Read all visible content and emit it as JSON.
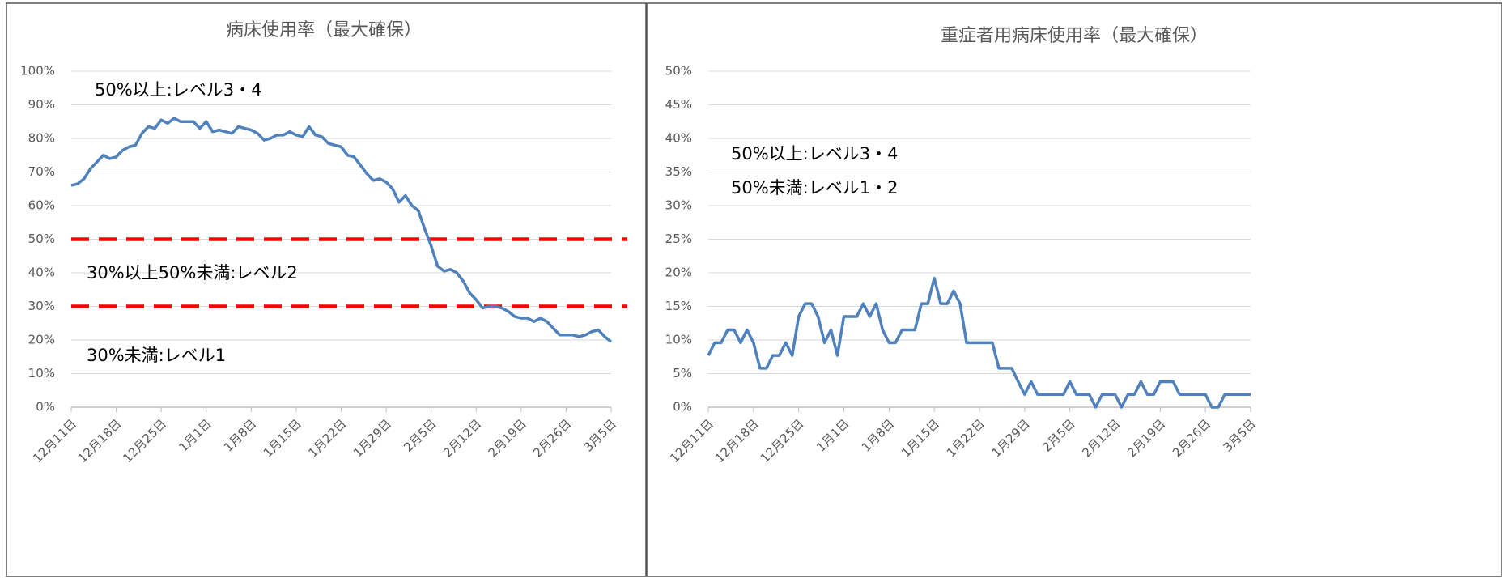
{
  "chart_data": [
    {
      "type": "line",
      "title": "病床使用率（最大確保）",
      "categories": [
        "12月11日",
        null,
        null,
        null,
        null,
        null,
        null,
        "12月18日",
        null,
        null,
        null,
        null,
        null,
        null,
        "12月25日",
        null,
        null,
        null,
        null,
        null,
        null,
        "1月1日",
        null,
        null,
        null,
        null,
        null,
        null,
        "1月8日",
        null,
        null,
        null,
        null,
        null,
        null,
        "1月15日",
        null,
        null,
        null,
        null,
        null,
        null,
        "1月22日",
        null,
        null,
        null,
        null,
        null,
        null,
        "1月29日",
        null,
        null,
        null,
        null,
        null,
        null,
        "2月5日",
        null,
        null,
        null,
        null,
        null,
        null,
        "2月12日",
        null,
        null,
        null,
        null,
        null,
        null,
        "2月19日",
        null,
        null,
        null,
        null,
        null,
        null,
        "2月26日",
        null,
        null,
        null,
        null,
        null,
        null,
        "3月5日"
      ],
      "series": [
        {
          "color": "#4f81bd",
          "values": [
            66,
            66.5,
            68,
            71,
            73,
            75,
            74,
            74.5,
            76.5,
            77.5,
            78,
            81.5,
            83.5,
            83,
            85.5,
            84.5,
            86,
            85,
            85,
            85,
            83,
            85,
            82,
            82.5,
            82,
            81.5,
            83.5,
            83,
            82.5,
            81.5,
            79.5,
            80,
            81,
            81,
            82,
            81,
            80.5,
            83.5,
            81,
            80.5,
            78.5,
            78,
            77.5,
            75,
            74.5,
            72,
            69.5,
            67.5,
            68,
            67,
            65,
            61,
            63,
            60,
            58.5,
            53,
            48,
            42,
            40.5,
            41,
            40,
            37.5,
            34,
            32,
            29.5,
            30,
            30,
            29.5,
            28.5,
            27,
            26.5,
            26.5,
            25.5,
            26.5,
            25.5,
            23.5,
            21.5,
            21.5,
            21.5,
            21,
            21.5,
            22.5,
            23,
            21,
            19.5
          ]
        }
      ],
      "ylim": [
        0,
        100
      ],
      "yticks": [
        {
          "value": 0,
          "label": "0%"
        },
        {
          "value": 10,
          "label": "10%"
        },
        {
          "value": 20,
          "label": "20%"
        },
        {
          "value": 30,
          "label": "30%"
        },
        {
          "value": 40,
          "label": "40%"
        },
        {
          "value": 50,
          "label": "50%"
        },
        {
          "value": 60,
          "label": "60%"
        },
        {
          "value": 70,
          "label": "70%"
        },
        {
          "value": 80,
          "label": "80%"
        },
        {
          "value": 90,
          "label": "90%"
        },
        {
          "value": 100,
          "label": "100%"
        }
      ],
      "grid": true,
      "reference_lines": [
        {
          "value": 50,
          "color": "#ff0000"
        },
        {
          "value": 30,
          "color": "#ff0000"
        }
      ],
      "annotations": [
        "50%以上:レベル3・4",
        "30%以上50%未満:レベル2",
        "30%未満:レベル1"
      ]
    },
    {
      "type": "line",
      "title": "重症者用病床使用率（最大確保）",
      "categories": [
        "12月11日",
        null,
        null,
        null,
        null,
        null,
        null,
        "12月18日",
        null,
        null,
        null,
        null,
        null,
        null,
        "12月25日",
        null,
        null,
        null,
        null,
        null,
        null,
        "1月1日",
        null,
        null,
        null,
        null,
        null,
        null,
        "1月8日",
        null,
        null,
        null,
        null,
        null,
        null,
        "1月15日",
        null,
        null,
        null,
        null,
        null,
        null,
        "1月22日",
        null,
        null,
        null,
        null,
        null,
        null,
        "1月29日",
        null,
        null,
        null,
        null,
        null,
        null,
        "2月5日",
        null,
        null,
        null,
        null,
        null,
        null,
        "2月12日",
        null,
        null,
        null,
        null,
        null,
        null,
        "2月19日",
        null,
        null,
        null,
        null,
        null,
        null,
        "2月26日",
        null,
        null,
        null,
        null,
        null,
        null,
        "3月5日"
      ],
      "series": [
        {
          "color": "#4f81bd",
          "values": [
            7.7,
            9.6,
            9.6,
            11.5,
            11.5,
            9.6,
            11.5,
            9.6,
            5.8,
            5.8,
            7.7,
            7.7,
            9.6,
            7.7,
            13.5,
            15.4,
            15.4,
            13.5,
            9.6,
            11.5,
            7.7,
            13.5,
            13.5,
            13.5,
            15.4,
            13.5,
            15.4,
            11.5,
            9.6,
            9.6,
            11.5,
            11.5,
            11.5,
            15.4,
            15.4,
            19.2,
            15.4,
            15.4,
            17.3,
            15.4,
            9.6,
            9.6,
            9.6,
            9.6,
            9.6,
            5.8,
            5.8,
            5.8,
            3.8,
            1.9,
            3.8,
            1.9,
            1.9,
            1.9,
            1.9,
            1.9,
            3.8,
            1.9,
            1.9,
            1.9,
            0,
            1.9,
            1.9,
            1.9,
            0,
            1.9,
            1.9,
            3.8,
            1.9,
            1.9,
            3.8,
            3.8,
            3.8,
            1.9,
            1.9,
            1.9,
            1.9,
            1.9,
            0,
            0,
            1.9,
            1.9,
            1.9,
            1.9,
            1.9
          ]
        }
      ],
      "ylim": [
        0,
        50
      ],
      "yticks": [
        {
          "value": 0,
          "label": "0%"
        },
        {
          "value": 5,
          "label": "5%"
        },
        {
          "value": 10,
          "label": "10%"
        },
        {
          "value": 15,
          "label": "15%"
        },
        {
          "value": 20,
          "label": "20%"
        },
        {
          "value": 25,
          "label": "25%"
        },
        {
          "value": 30,
          "label": "30%"
        },
        {
          "value": 35,
          "label": "35%"
        },
        {
          "value": 40,
          "label": "40%"
        },
        {
          "value": 45,
          "label": "45%"
        },
        {
          "value": 50,
          "label": "50%"
        }
      ],
      "grid": true,
      "annotations": [
        "50%以上:レベル3・4",
        "50%未満:レベル1・2"
      ]
    }
  ]
}
